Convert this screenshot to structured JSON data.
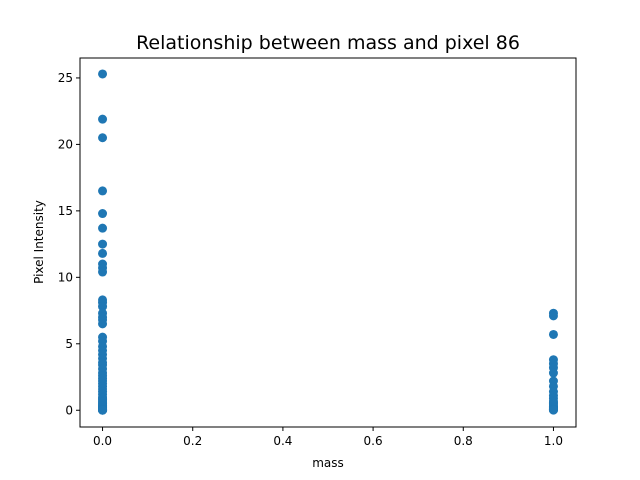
{
  "chart_data": {
    "type": "scatter",
    "title": "Relationship between mass and pixel 86",
    "xlabel": "mass",
    "ylabel": "Pixel Intensity",
    "xlim": [
      -0.05,
      1.05
    ],
    "ylim": [
      -1.26,
      26.5
    ],
    "xticks": [
      0.0,
      0.2,
      0.4,
      0.6,
      0.8,
      1.0
    ],
    "xtick_labels": [
      "0.0",
      "0.2",
      "0.4",
      "0.6",
      "0.8",
      "1.0"
    ],
    "yticks": [
      0,
      5,
      10,
      15,
      20,
      25
    ],
    "ytick_labels": [
      "0",
      "5",
      "10",
      "15",
      "20",
      "25"
    ],
    "grid": false,
    "marker_color": "#1f77b4",
    "series": [
      {
        "x": [
          0,
          0,
          0,
          0,
          0,
          0,
          0,
          0,
          0,
          0,
          0,
          0,
          0,
          0,
          0,
          0,
          0,
          0,
          0,
          0,
          0,
          0,
          0,
          0,
          0,
          0,
          0,
          0,
          0,
          0,
          0,
          0,
          0,
          0,
          0,
          0,
          0,
          0,
          0,
          0,
          0,
          0,
          0,
          0,
          0,
          0,
          0,
          0,
          0,
          0,
          0,
          0,
          0,
          0,
          0,
          0,
          0,
          1,
          1,
          1,
          1,
          1,
          1,
          1,
          1,
          1,
          1,
          1,
          1,
          1,
          1,
          1,
          1,
          1,
          1,
          1,
          1,
          1,
          1,
          1,
          1,
          1,
          1
        ],
        "y": [
          25.3,
          21.9,
          20.5,
          16.5,
          14.8,
          13.7,
          12.5,
          11.8,
          11.0,
          10.7,
          10.4,
          8.3,
          8.1,
          7.8,
          7.3,
          7.0,
          6.8,
          6.5,
          5.5,
          5.2,
          4.8,
          4.5,
          4.2,
          3.9,
          3.6,
          3.4,
          3.1,
          2.8,
          2.6,
          2.4,
          2.2,
          2.0,
          1.8,
          1.6,
          1.4,
          1.2,
          1.0,
          0.9,
          0.8,
          0.7,
          0.6,
          0.5,
          0.4,
          0.35,
          0.3,
          0.25,
          0.2,
          0.15,
          0.1,
          0.08,
          0.06,
          0.04,
          0.03,
          0.02,
          0.01,
          0.005,
          0.0,
          7.3,
          7.1,
          5.7,
          3.8,
          3.5,
          3.2,
          2.8,
          2.2,
          1.8,
          1.4,
          1.1,
          0.9,
          0.7,
          0.6,
          0.5,
          0.4,
          0.3,
          0.25,
          0.2,
          0.15,
          0.1,
          0.07,
          0.05,
          0.03,
          0.02,
          0.01
        ]
      }
    ]
  }
}
